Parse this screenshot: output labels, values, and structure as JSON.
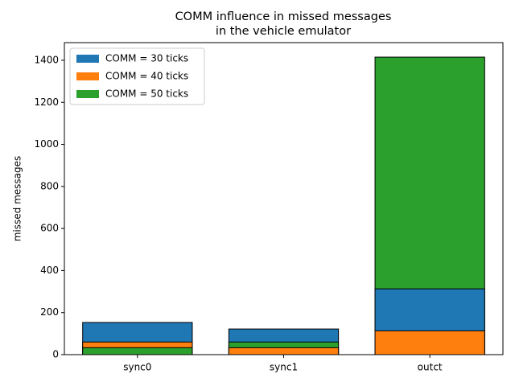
{
  "chart_data": {
    "type": "bar",
    "title": [
      "COMM influence in missed messages",
      "in the vehicle emulator"
    ],
    "y_label": "missed messages",
    "categories": [
      "sync0",
      "sync1",
      "outct"
    ],
    "series": [
      {
        "name": "COMM = 30 ticks",
        "color": "#1f77b4",
        "values": [
          153,
          122,
          313
        ]
      },
      {
        "name": "COMM = 40 ticks",
        "color": "#ff7f0e",
        "values": [
          60,
          33,
          113
        ]
      },
      {
        "name": "COMM = 50 ticks",
        "color": "#2ca02c",
        "values": [
          33,
          60,
          1415
        ]
      }
    ],
    "ylim": [
      0,
      1484
    ],
    "yticks": [
      0,
      200,
      400,
      600,
      800,
      1000,
      1200,
      1400
    ],
    "legend": "upper left"
  }
}
